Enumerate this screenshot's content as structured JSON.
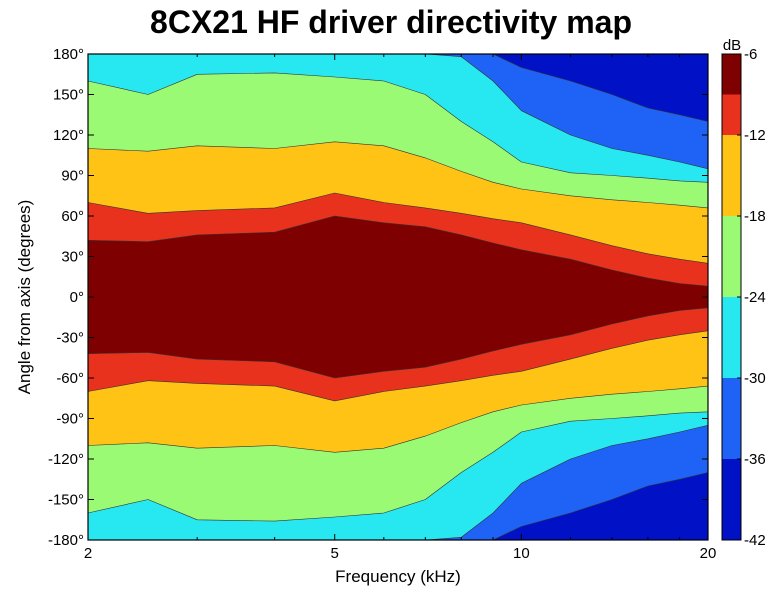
{
  "chart_data": {
    "type": "heatmap",
    "title": "8CX21 HF driver directivity map",
    "xlabel": "Frequency (kHz)",
    "ylabel": "Angle from axis (degrees)",
    "x_scale": "log",
    "xlim": [
      2,
      20
    ],
    "ylim": [
      -180,
      180
    ],
    "x_ticks": [
      "2",
      "5",
      "10",
      "20"
    ],
    "x_tick_values": [
      2,
      5,
      10,
      20
    ],
    "y_ticks": [
      "-180°",
      "-150°",
      "-120°",
      "-90°",
      "-60°",
      "-30°",
      "0°",
      "30°",
      "60°",
      "90°",
      "120°",
      "150°",
      "180°"
    ],
    "y_tick_values": [
      -180,
      -150,
      -120,
      -90,
      -60,
      -30,
      0,
      30,
      60,
      90,
      120,
      150,
      180
    ],
    "colorbar": {
      "unit": "dB",
      "range": [
        -42,
        -6
      ],
      "ticks": [
        "-6",
        "-12",
        "-18",
        "-24",
        "-30",
        "-36",
        "-42"
      ],
      "levels": [
        {
          "min": -9,
          "max": -6,
          "color": "#7f0000"
        },
        {
          "min": -12,
          "max": -9,
          "color": "#e8321e"
        },
        {
          "min": -18,
          "max": -12,
          "color": "#ffc316"
        },
        {
          "min": -24,
          "max": -18,
          "color": "#9afa73"
        },
        {
          "min": -30,
          "max": -24,
          "color": "#27e8f0"
        },
        {
          "min": -36,
          "max": -30,
          "color": "#1e63f5"
        },
        {
          "min": -42,
          "max": -36,
          "color": "#0011c6"
        }
      ]
    },
    "frequencies_khz": [
      2,
      2.5,
      3,
      4,
      5,
      6,
      7,
      8,
      9,
      10,
      12,
      14,
      16,
      18,
      20
    ],
    "contour_angles_deg": {
      "-9dB": [
        42,
        41,
        46,
        48,
        60,
        55,
        52,
        46,
        40,
        35,
        28,
        20,
        14,
        10,
        8
      ],
      "-12dB": [
        70,
        62,
        64,
        66,
        77,
        70,
        66,
        62,
        58,
        55,
        46,
        38,
        32,
        28,
        25
      ],
      "-18dB": [
        110,
        108,
        112,
        110,
        115,
        112,
        103,
        93,
        85,
        80,
        75,
        72,
        70,
        68,
        66
      ],
      "-24dB": [
        160,
        150,
        165,
        166,
        163,
        160,
        150,
        130,
        115,
        100,
        92,
        90,
        88,
        86,
        85
      ],
      "-30dB": [
        180,
        180,
        180,
        180,
        180,
        180,
        180,
        178,
        160,
        138,
        120,
        110,
        105,
        100,
        95
      ],
      "-36dB": [
        180,
        180,
        180,
        180,
        180,
        180,
        180,
        180,
        180,
        170,
        160,
        150,
        140,
        135,
        130
      ]
    }
  }
}
